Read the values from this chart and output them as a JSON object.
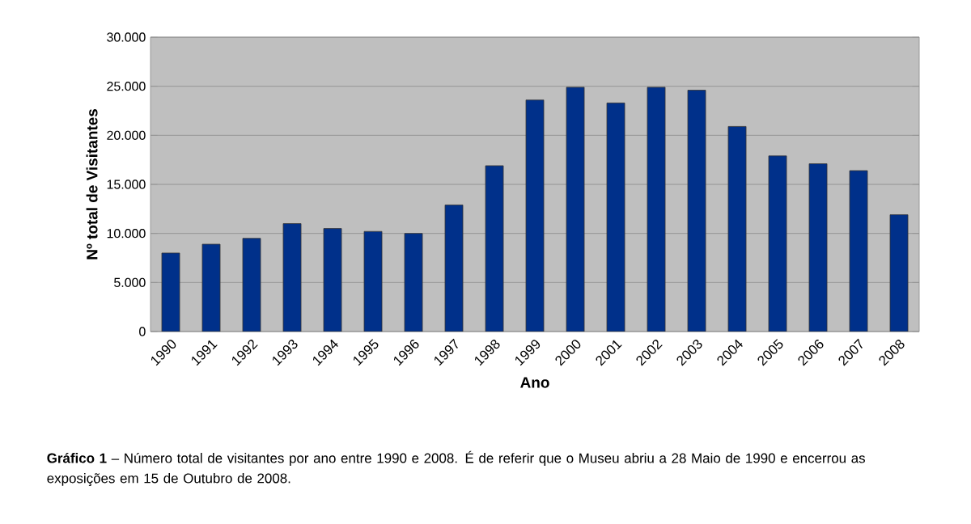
{
  "chart_data": {
    "type": "bar",
    "xlabel": "Ano",
    "ylabel": "Nº total de Visitantes",
    "categories": [
      "1990",
      "1991",
      "1992",
      "1993",
      "1994",
      "1995",
      "1996",
      "1997",
      "1998",
      "1999",
      "2000",
      "2001",
      "2002",
      "2003",
      "2004",
      "2005",
      "2006",
      "2007",
      "2008"
    ],
    "values": [
      8000,
      8900,
      9500,
      11000,
      10500,
      10200,
      10000,
      12900,
      16900,
      23600,
      24900,
      23300,
      24900,
      24600,
      20900,
      17900,
      17100,
      16400,
      11900
    ],
    "color": "#00308a",
    "ylim": [
      0,
      30000
    ],
    "yticks": [
      {
        "value": 0,
        "label": "0"
      },
      {
        "value": 5000,
        "label": "5.000"
      },
      {
        "value": 10000,
        "label": "10.000"
      },
      {
        "value": 15000,
        "label": "15.000"
      },
      {
        "value": 20000,
        "label": "20.000"
      },
      {
        "value": 25000,
        "label": "25.000"
      },
      {
        "value": 30000,
        "label": "30.000"
      }
    ],
    "grid": "y",
    "annotations": [
      "**Gráfico 1** – Número total de visitantes por ano entre 1990 e 2008. É de referir que o Museu abriu a 28 Maio de 1990 e encerrou as exposições em 15 de Outubro de 2008."
    ]
  }
}
